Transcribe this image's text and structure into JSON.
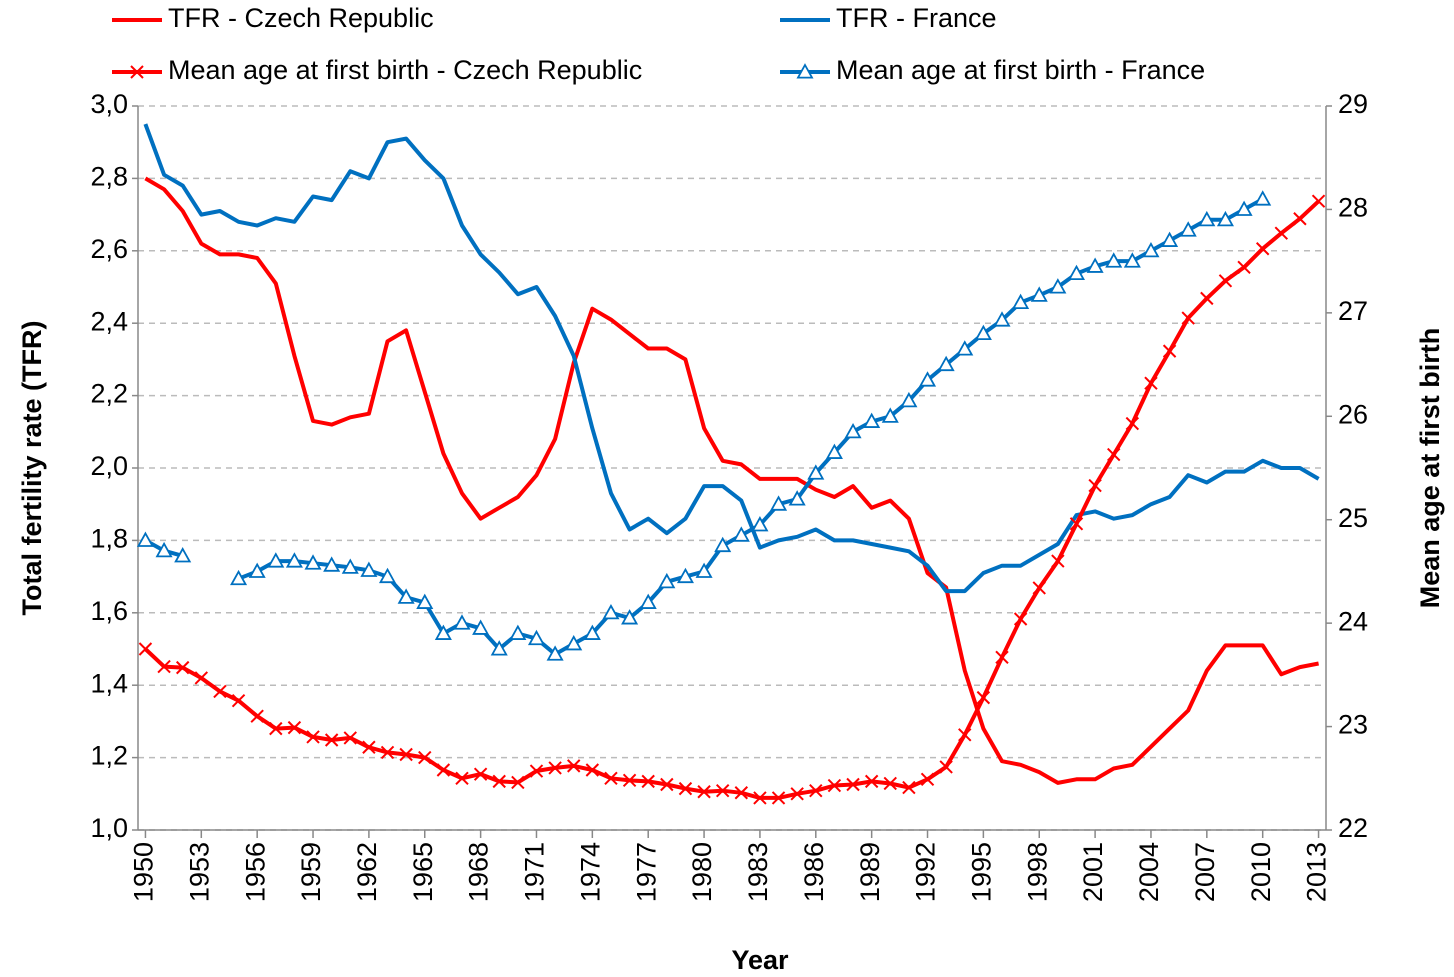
{
  "chart_data": {
    "type": "line",
    "xlabel": "Year",
    "ylabel": "Total fertility rate (TFR)",
    "y2label": "Mean age at first birth",
    "x": [
      1950,
      1951,
      1952,
      1953,
      1954,
      1955,
      1956,
      1957,
      1958,
      1959,
      1960,
      1961,
      1962,
      1963,
      1964,
      1965,
      1966,
      1967,
      1968,
      1969,
      1970,
      1971,
      1972,
      1973,
      1974,
      1975,
      1976,
      1977,
      1978,
      1979,
      1980,
      1981,
      1982,
      1983,
      1984,
      1985,
      1986,
      1987,
      1988,
      1989,
      1990,
      1991,
      1992,
      1993,
      1994,
      1995,
      1996,
      1997,
      1998,
      1999,
      2000,
      2001,
      2002,
      2003,
      2004,
      2005,
      2006,
      2007,
      2008,
      2009,
      2010,
      2011,
      2012,
      2013
    ],
    "xlim": [
      1949.6,
      2013.4
    ],
    "xticks": [
      1950,
      1953,
      1956,
      1959,
      1962,
      1965,
      1968,
      1971,
      1974,
      1977,
      1980,
      1983,
      1986,
      1989,
      1992,
      1995,
      1998,
      2001,
      2004,
      2007,
      2010,
      2013
    ],
    "ylim": [
      1.0,
      3.0
    ],
    "yticks": [
      {
        "value": 1.0,
        "label": "1,0"
      },
      {
        "value": 1.2,
        "label": "1,2"
      },
      {
        "value": 1.4,
        "label": "1,4"
      },
      {
        "value": 1.6,
        "label": "1,6"
      },
      {
        "value": 1.8,
        "label": "1,8"
      },
      {
        "value": 2.0,
        "label": "2,0"
      },
      {
        "value": 2.2,
        "label": "2,2"
      },
      {
        "value": 2.4,
        "label": "2,4"
      },
      {
        "value": 2.6,
        "label": "2,6"
      },
      {
        "value": 2.8,
        "label": "2,8"
      },
      {
        "value": 3.0,
        "label": "3,0"
      }
    ],
    "y2lim": [
      22,
      29
    ],
    "y2ticks": [
      22,
      23,
      24,
      25,
      26,
      27,
      28,
      29
    ],
    "grid": true,
    "legend": "top",
    "series": [
      {
        "name": "TFR - Czech Republic",
        "color": "#ff0000",
        "marker": "none",
        "values": [
          2.8,
          2.77,
          2.71,
          2.62,
          2.59,
          2.59,
          2.58,
          2.51,
          2.31,
          2.13,
          2.12,
          2.14,
          2.15,
          2.35,
          2.38,
          2.21,
          2.04,
          1.93,
          1.86,
          1.89,
          1.92,
          1.98,
          2.08,
          2.29,
          2.44,
          2.41,
          2.37,
          2.33,
          2.33,
          2.3,
          2.11,
          2.02,
          2.01,
          1.97,
          1.97,
          1.97,
          1.94,
          1.92,
          1.95,
          1.89,
          1.91,
          1.86,
          1.71,
          1.67,
          1.44,
          1.28,
          1.19,
          1.18,
          1.16,
          1.13,
          1.14,
          1.14,
          1.17,
          1.18,
          1.23,
          1.28,
          1.33,
          1.44,
          1.51,
          1.51,
          1.51,
          1.43,
          1.45,
          1.46
        ]
      },
      {
        "name": "TFR - France",
        "color": "#0070c0",
        "marker": "none",
        "values": [
          2.95,
          2.81,
          2.78,
          2.7,
          2.71,
          2.68,
          2.67,
          2.69,
          2.68,
          2.75,
          2.74,
          2.82,
          2.8,
          2.9,
          2.91,
          2.85,
          2.8,
          2.67,
          2.59,
          2.54,
          2.48,
          2.5,
          2.42,
          2.31,
          2.11,
          1.93,
          1.83,
          1.86,
          1.82,
          1.86,
          1.95,
          1.95,
          1.91,
          1.78,
          1.8,
          1.81,
          1.83,
          1.8,
          1.8,
          1.79,
          1.78,
          1.77,
          1.73,
          1.66,
          1.66,
          1.71,
          1.73,
          1.73,
          1.76,
          1.79,
          1.87,
          1.88,
          1.86,
          1.87,
          1.9,
          1.92,
          1.98,
          1.96,
          1.99,
          1.99,
          2.02,
          2.0,
          2.0,
          1.97
        ]
      },
      {
        "name": "Mean age at first birth - Czech Republic",
        "color": "#ff0000",
        "marker": "x",
        "axis": "y2",
        "values": [
          23.75,
          23.58,
          23.57,
          23.47,
          23.34,
          23.25,
          23.1,
          22.98,
          22.99,
          22.9,
          22.87,
          22.89,
          22.8,
          22.75,
          22.73,
          22.7,
          22.58,
          22.5,
          22.54,
          22.47,
          22.46,
          22.57,
          22.6,
          22.62,
          22.58,
          22.5,
          22.48,
          22.47,
          22.44,
          22.4,
          22.37,
          22.38,
          22.36,
          22.31,
          22.31,
          22.35,
          22.38,
          22.43,
          22.44,
          22.47,
          22.45,
          22.41,
          22.49,
          22.61,
          22.92,
          23.28,
          23.67,
          24.04,
          24.34,
          24.6,
          24.96,
          25.33,
          25.63,
          25.93,
          26.32,
          26.63,
          26.95,
          27.14,
          27.31,
          27.44,
          27.62,
          27.77,
          27.91,
          28.08
        ]
      },
      {
        "name": "Mean age at first birth - France",
        "color": "#0070c0",
        "marker": "triangle",
        "axis": "y2",
        "values": [
          24.8,
          24.7,
          24.65,
          null,
          null,
          24.43,
          24.5,
          24.6,
          24.6,
          24.58,
          24.56,
          24.54,
          24.51,
          24.45,
          24.25,
          24.2,
          23.9,
          24.0,
          23.95,
          23.75,
          23.9,
          23.85,
          23.7,
          23.8,
          23.9,
          24.1,
          24.05,
          24.2,
          24.4,
          24.45,
          24.5,
          24.75,
          24.85,
          24.95,
          25.15,
          25.2,
          25.45,
          25.65,
          25.85,
          25.95,
          26.0,
          26.15,
          26.35,
          26.5,
          26.65,
          26.8,
          26.93,
          27.1,
          27.17,
          27.25,
          27.38,
          27.45,
          27.5,
          27.5,
          27.6,
          27.7,
          27.8,
          27.9,
          27.9,
          28.0,
          28.1,
          null,
          null,
          null
        ]
      }
    ]
  }
}
